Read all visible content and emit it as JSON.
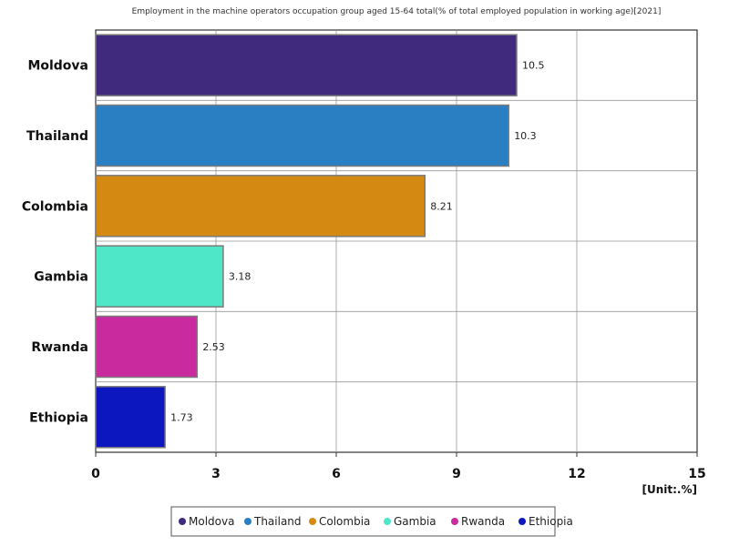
{
  "chart_data": {
    "type": "bar",
    "orientation": "horizontal",
    "title": "Employment in the machine operators occupation group aged 15-64 total(% of total employed population in working age)[2021]",
    "categories": [
      "Moldova",
      "Thailand",
      "Colombia",
      "Gambia",
      "Rwanda",
      "Ethiopia"
    ],
    "values": [
      10.5,
      10.3,
      8.21,
      3.18,
      2.53,
      1.73
    ],
    "value_labels": [
      "10.5",
      "10.3",
      "8.21",
      "3.18",
      "2.53",
      "1.73"
    ],
    "colors": [
      "#3f2a7e",
      "#2a7fc2",
      "#d48a12",
      "#4ee8c8",
      "#c92a9e",
      "#0d17c0"
    ],
    "xlim": [
      0,
      15
    ],
    "xticks": [
      0,
      3,
      6,
      9,
      12,
      15
    ],
    "xtick_labels": [
      "0",
      "3",
      "6",
      "9",
      "12",
      "15"
    ],
    "unit": "[Unit:.%]",
    "grid": true,
    "legend_position": "bottom-center"
  }
}
